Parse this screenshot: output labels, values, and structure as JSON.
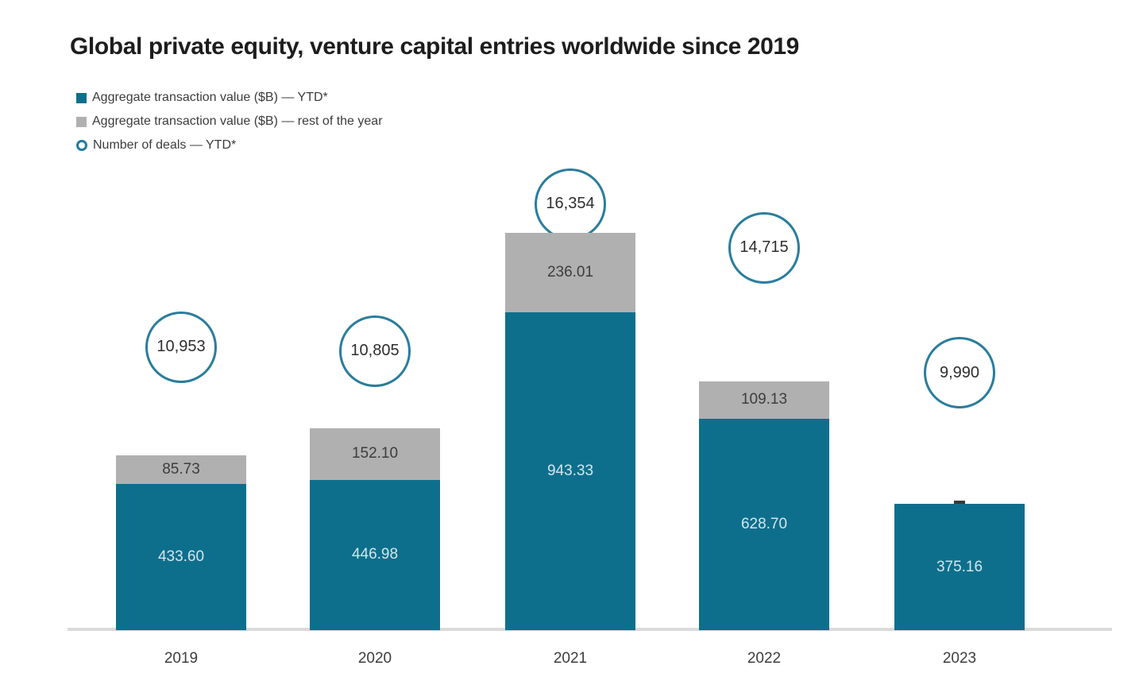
{
  "title": "Global private equity, venture capital entries worldwide since 2019",
  "legend": [
    {
      "marker": "square",
      "color": "#0e6f8c",
      "label": "Aggregate transaction value ($B) — YTD*"
    },
    {
      "marker": "square",
      "color": "#b0b0b0",
      "label": "Aggregate transaction value ($B) — rest of the year"
    },
    {
      "marker": "ring",
      "color": "#1f7ba0",
      "label": "Number of deals — YTD*"
    }
  ],
  "chart_data": {
    "type": "bar",
    "stacked": true,
    "categories": [
      "2019",
      "2020",
      "2021",
      "2022",
      "2023"
    ],
    "series": [
      {
        "name": "Aggregate transaction value ($B) — YTD*",
        "color": "#0e6f8c",
        "values": [
          433.6,
          446.98,
          943.33,
          628.7,
          375.16
        ],
        "labels": [
          "433.60",
          "446.98",
          "943.33",
          "628.70",
          "375.16"
        ]
      },
      {
        "name": "Aggregate transaction value ($B) — rest of the year",
        "color": "#b0b0b0",
        "values": [
          85.73,
          152.1,
          236.01,
          109.13,
          null
        ],
        "labels": [
          "85.73",
          "152.10",
          "236.01",
          "109.13",
          ""
        ]
      },
      {
        "name": "Number of deals — YTD*",
        "marker": "circle",
        "color": "#2a7d9c",
        "values": [
          10953,
          10805,
          16354,
          14715,
          9990
        ],
        "labels": [
          "10,953",
          "10,805",
          "16,354",
          "14,715",
          "9,990"
        ]
      }
    ],
    "stack_totals": [
      519.33,
      599.08,
      1179.34,
      737.83,
      375.16
    ],
    "xlabel": "",
    "ylabel": "Aggregate transaction value ($B)",
    "value_axis_range": [
      0,
      1230
    ],
    "deals_axis_range": [
      0,
      17000
    ],
    "grid": false,
    "legend_position": "top-left",
    "axis_line_color": "#dbdbdb",
    "tick_marker_years": [
      "2023"
    ]
  }
}
